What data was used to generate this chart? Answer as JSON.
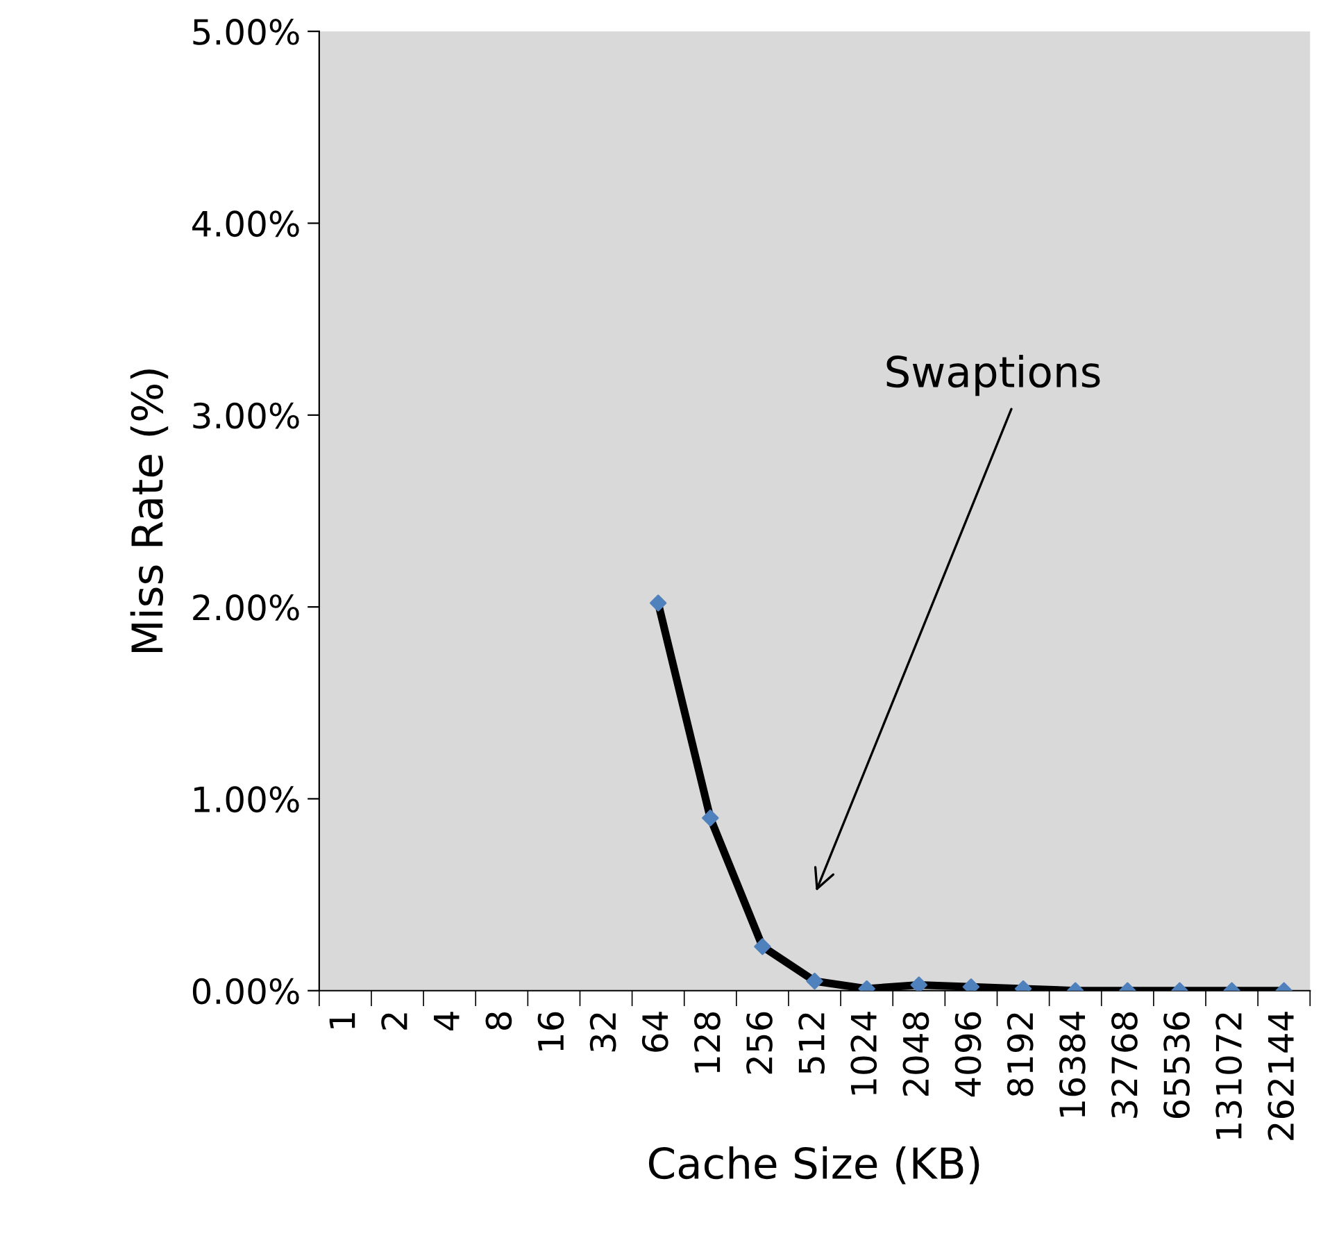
{
  "chart_data": {
    "type": "line",
    "xlabel": "Cache Size (KB)",
    "ylabel": "Miss Rate (%)",
    "categories": [
      "1",
      "2",
      "4",
      "8",
      "16",
      "32",
      "64",
      "128",
      "256",
      "512",
      "1024",
      "2048",
      "4096",
      "8192",
      "16384",
      "32768",
      "65536",
      "131072",
      "262144"
    ],
    "series": [
      {
        "color": "#000000",
        "marker": "none",
        "values": [
          null,
          null,
          null,
          null,
          null,
          null,
          2.02,
          0.9,
          0.23,
          0.05,
          0.01,
          0.03,
          0.02,
          0.01,
          0.0,
          0.0,
          0.0,
          0.0,
          0.0
        ]
      },
      {
        "type": "scatter",
        "color": "#4f81bd",
        "marker": "diamond",
        "values": [
          null,
          null,
          null,
          null,
          null,
          null,
          2.02,
          0.9,
          0.23,
          0.05,
          0.01,
          0.03,
          0.02,
          0.01,
          0.0,
          0.0,
          0.0,
          0.0,
          0.0
        ]
      }
    ],
    "ylim": [
      0,
      5
    ],
    "yticks": [
      {
        "value": 0,
        "label": "0.00%"
      },
      {
        "value": 1,
        "label": "1.00%"
      },
      {
        "value": 2,
        "label": "2.00%"
      },
      {
        "value": 3,
        "label": "3.00%"
      },
      {
        "value": 4,
        "label": "4.00%"
      },
      {
        "value": 5,
        "label": "5.00%"
      }
    ],
    "annotations": [
      "Swaptions"
    ],
    "grid": false,
    "legend": false,
    "line_style": "solid"
  }
}
